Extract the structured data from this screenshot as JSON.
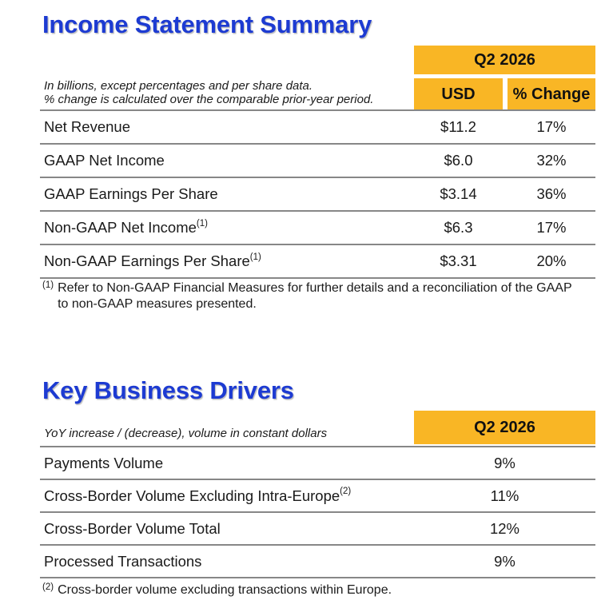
{
  "colors": {
    "gold": "#f9b625",
    "blue": "#1d3bd2",
    "gray": "#878787",
    "text": "#1a1a1a",
    "bg": "#ffffff"
  },
  "income_statement": {
    "title": "Income Statement Summary",
    "note_line1": "In billions, except percentages and per share data.",
    "note_line2": "% change is calculated over the comparable prior-year period.",
    "period_header": "Q2 2026",
    "columns": {
      "usd": "USD",
      "pct_change": "% Change"
    },
    "rows": [
      {
        "label": "Net Revenue",
        "sup": "",
        "usd": "$11.2",
        "pct_change": "17%"
      },
      {
        "label": "GAAP Net Income",
        "sup": "",
        "usd": "$6.0",
        "pct_change": "32%"
      },
      {
        "label": "GAAP Earnings Per Share",
        "sup": "",
        "usd": "$3.14",
        "pct_change": "36%"
      },
      {
        "label": "Non-GAAP Net Income",
        "sup": "(1)",
        "usd": "$6.3",
        "pct_change": "17%"
      },
      {
        "label": "Non-GAAP Earnings Per Share",
        "sup": "(1)",
        "usd": "$3.31",
        "pct_change": "20%"
      }
    ],
    "footnote": {
      "marker": "(1)",
      "text": "Refer to Non-GAAP Financial Measures for further details and a reconciliation of the GAAP to non-GAAP measures presented."
    }
  },
  "key_business_drivers": {
    "title": "Key Business Drivers",
    "note": "YoY increase / (decrease), volume in constant dollars",
    "period_header": "Q2 2026",
    "rows": [
      {
        "label": "Payments Volume",
        "sup": "",
        "value": "9%"
      },
      {
        "label": "Cross-Border Volume Excluding Intra-Europe",
        "sup": "(2)",
        "value": "11%"
      },
      {
        "label": "Cross-Border Volume Total",
        "sup": "",
        "value": "12%"
      },
      {
        "label": "Processed Transactions",
        "sup": "",
        "value": "9%"
      }
    ],
    "footnote": {
      "marker": "(2)",
      "text": "Cross-border volume excluding transactions within Europe."
    }
  }
}
